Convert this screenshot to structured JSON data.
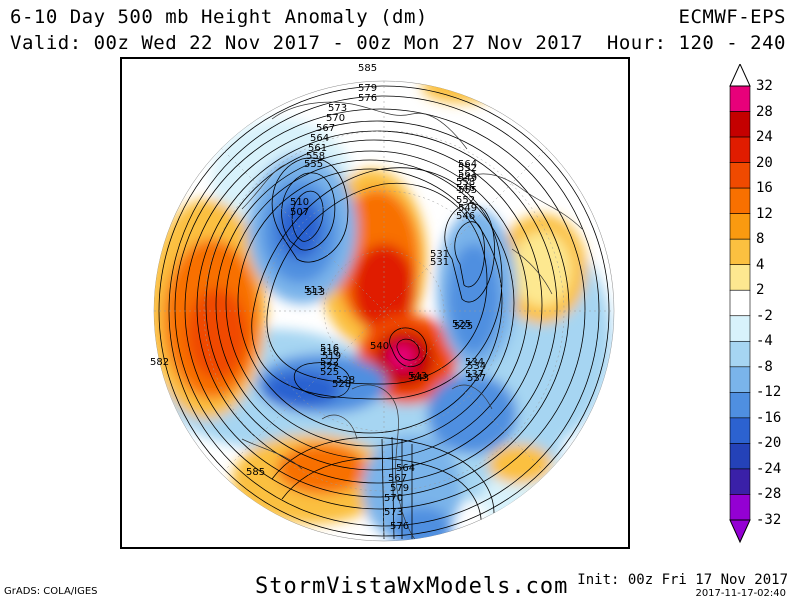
{
  "header": {
    "title": "6-10 Day 500 mb Height Anomaly (dm)",
    "valid": "Valid: 00z Wed 22 Nov 2017 - 00z Mon 27 Nov 2017",
    "model": "ECMWF-EPS",
    "hour": "Hour: 120 - 240"
  },
  "colorbar": {
    "labels": [
      "32",
      "28",
      "24",
      "20",
      "16",
      "12",
      "8",
      "4",
      "2",
      "-2",
      "-4",
      "-8",
      "-12",
      "-16",
      "-20",
      "-24",
      "-28",
      "-32"
    ],
    "colors": [
      "#e8007a",
      "#c40000",
      "#e01c00",
      "#f04a00",
      "#f87000",
      "#fa9a10",
      "#fbc040",
      "#fde890",
      "#ffffff",
      "#d8f2fb",
      "#a6d5f2",
      "#7ab4ea",
      "#4f8fe0",
      "#2c62d0",
      "#2442b8",
      "#3a20a8",
      "#9400d3"
    ]
  },
  "contours": {
    "labels": [
      "585",
      "579",
      "576",
      "573",
      "570",
      "567",
      "564",
      "561",
      "558",
      "555",
      "552",
      "549",
      "546",
      "543",
      "540",
      "537",
      "534",
      "531",
      "528",
      "525",
      "522",
      "519",
      "516",
      "513",
      "510",
      "507",
      "582",
      "585",
      "579",
      "576",
      "570",
      "573",
      "567",
      "564",
      "564",
      "561",
      "558",
      "555",
      "552",
      "549",
      "546",
      "531",
      "525",
      "534",
      "537",
      "543",
      "513",
      "516",
      "522",
      "525",
      "528"
    ]
  },
  "footer": {
    "grads": "GrADS: COLA/IGES",
    "site": "StormVistaWxModels.com",
    "init": "Init: 00z Fri 17 Nov 2017",
    "stamp": "2017-11-17-02:40"
  }
}
